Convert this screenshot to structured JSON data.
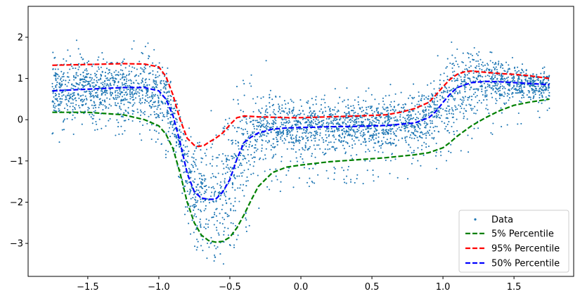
{
  "chart_data": {
    "type": "scatter",
    "title": "",
    "xlabel": "",
    "ylabel": "",
    "xlim": [
      -1.92,
      1.92
    ],
    "ylim": [
      -3.8,
      2.75
    ],
    "xticks": [
      -1.5,
      -1.0,
      -0.5,
      0.0,
      0.5,
      1.0,
      1.5
    ],
    "xtick_labels": [
      "−1.5",
      "−1.0",
      "−0.5",
      "0.0",
      "0.5",
      "1.0",
      "1.5"
    ],
    "yticks": [
      -3,
      -2,
      -1,
      0,
      1,
      2
    ],
    "ytick_labels": [
      "−3",
      "−2",
      "−1",
      "0",
      "1",
      "2"
    ],
    "grid": false,
    "legend_position": "lower-right",
    "scatter": {
      "name": "Data",
      "color": "#1f77b4",
      "x_range": [
        -1.75,
        1.75
      ],
      "approx_point_count": 10000
    },
    "series": [
      {
        "name": "5% Percentile",
        "color": "#008000",
        "style": "dashed",
        "x": [
          -1.75,
          -1.5,
          -1.25,
          -1.1,
          -1.0,
          -0.95,
          -0.9,
          -0.85,
          -0.8,
          -0.75,
          -0.7,
          -0.65,
          -0.6,
          -0.55,
          -0.5,
          -0.45,
          -0.4,
          -0.35,
          -0.3,
          -0.2,
          -0.1,
          0.0,
          0.2,
          0.4,
          0.6,
          0.8,
          0.9,
          1.0,
          1.05,
          1.1,
          1.2,
          1.3,
          1.4,
          1.5,
          1.6,
          1.75
        ],
        "values": [
          0.18,
          0.18,
          0.12,
          0.0,
          -0.15,
          -0.35,
          -0.7,
          -1.3,
          -2.0,
          -2.5,
          -2.8,
          -2.93,
          -2.97,
          -2.95,
          -2.85,
          -2.62,
          -2.3,
          -1.95,
          -1.62,
          -1.28,
          -1.15,
          -1.1,
          -1.02,
          -0.97,
          -0.92,
          -0.85,
          -0.8,
          -0.68,
          -0.55,
          -0.4,
          -0.15,
          0.05,
          0.22,
          0.35,
          0.42,
          0.5
        ]
      },
      {
        "name": "95% Percentile",
        "color": "#ff0000",
        "style": "dashed",
        "x": [
          -1.75,
          -1.5,
          -1.25,
          -1.1,
          -1.0,
          -0.95,
          -0.9,
          -0.85,
          -0.8,
          -0.75,
          -0.72,
          -0.68,
          -0.65,
          -0.6,
          -0.55,
          -0.5,
          -0.45,
          -0.4,
          -0.35,
          -0.3,
          -0.2,
          -0.1,
          0.0,
          0.2,
          0.4,
          0.6,
          0.7,
          0.8,
          0.9,
          0.95,
          1.0,
          1.05,
          1.1,
          1.15,
          1.2,
          1.3,
          1.4,
          1.5,
          1.6,
          1.75
        ],
        "values": [
          1.32,
          1.34,
          1.36,
          1.35,
          1.28,
          1.05,
          0.6,
          0.0,
          -0.45,
          -0.62,
          -0.65,
          -0.62,
          -0.55,
          -0.45,
          -0.32,
          -0.12,
          0.05,
          0.09,
          0.08,
          0.07,
          0.06,
          0.05,
          0.05,
          0.07,
          0.09,
          0.12,
          0.18,
          0.27,
          0.42,
          0.6,
          0.8,
          0.98,
          1.1,
          1.16,
          1.18,
          1.15,
          1.12,
          1.1,
          1.07,
          1.0
        ]
      },
      {
        "name": "50% Percentile",
        "color": "#0000ff",
        "style": "dashed",
        "x": [
          -1.75,
          -1.5,
          -1.25,
          -1.1,
          -1.0,
          -0.95,
          -0.9,
          -0.85,
          -0.8,
          -0.75,
          -0.7,
          -0.65,
          -0.6,
          -0.55,
          -0.5,
          -0.45,
          -0.4,
          -0.35,
          -0.3,
          -0.2,
          -0.1,
          0.0,
          0.2,
          0.4,
          0.6,
          0.8,
          0.9,
          0.95,
          1.0,
          1.05,
          1.1,
          1.2,
          1.3,
          1.4,
          1.5,
          1.6,
          1.75
        ],
        "values": [
          0.7,
          0.74,
          0.78,
          0.78,
          0.7,
          0.5,
          0.1,
          -0.55,
          -1.3,
          -1.75,
          -1.9,
          -1.93,
          -1.93,
          -1.75,
          -1.45,
          -0.95,
          -0.55,
          -0.42,
          -0.32,
          -0.23,
          -0.2,
          -0.19,
          -0.17,
          -0.16,
          -0.14,
          -0.08,
          0.05,
          0.2,
          0.42,
          0.62,
          0.78,
          0.9,
          0.93,
          0.92,
          0.9,
          0.88,
          0.85
        ]
      }
    ]
  },
  "legend": {
    "items": [
      {
        "label": "Data",
        "color": "#1f77b4",
        "kind": "marker"
      },
      {
        "label": "5% Percentile",
        "color": "#008000",
        "kind": "dashed"
      },
      {
        "label": "95% Percentile",
        "color": "#ff0000",
        "kind": "dashed"
      },
      {
        "label": "50% Percentile",
        "color": "#0000ff",
        "kind": "dashed"
      }
    ]
  }
}
